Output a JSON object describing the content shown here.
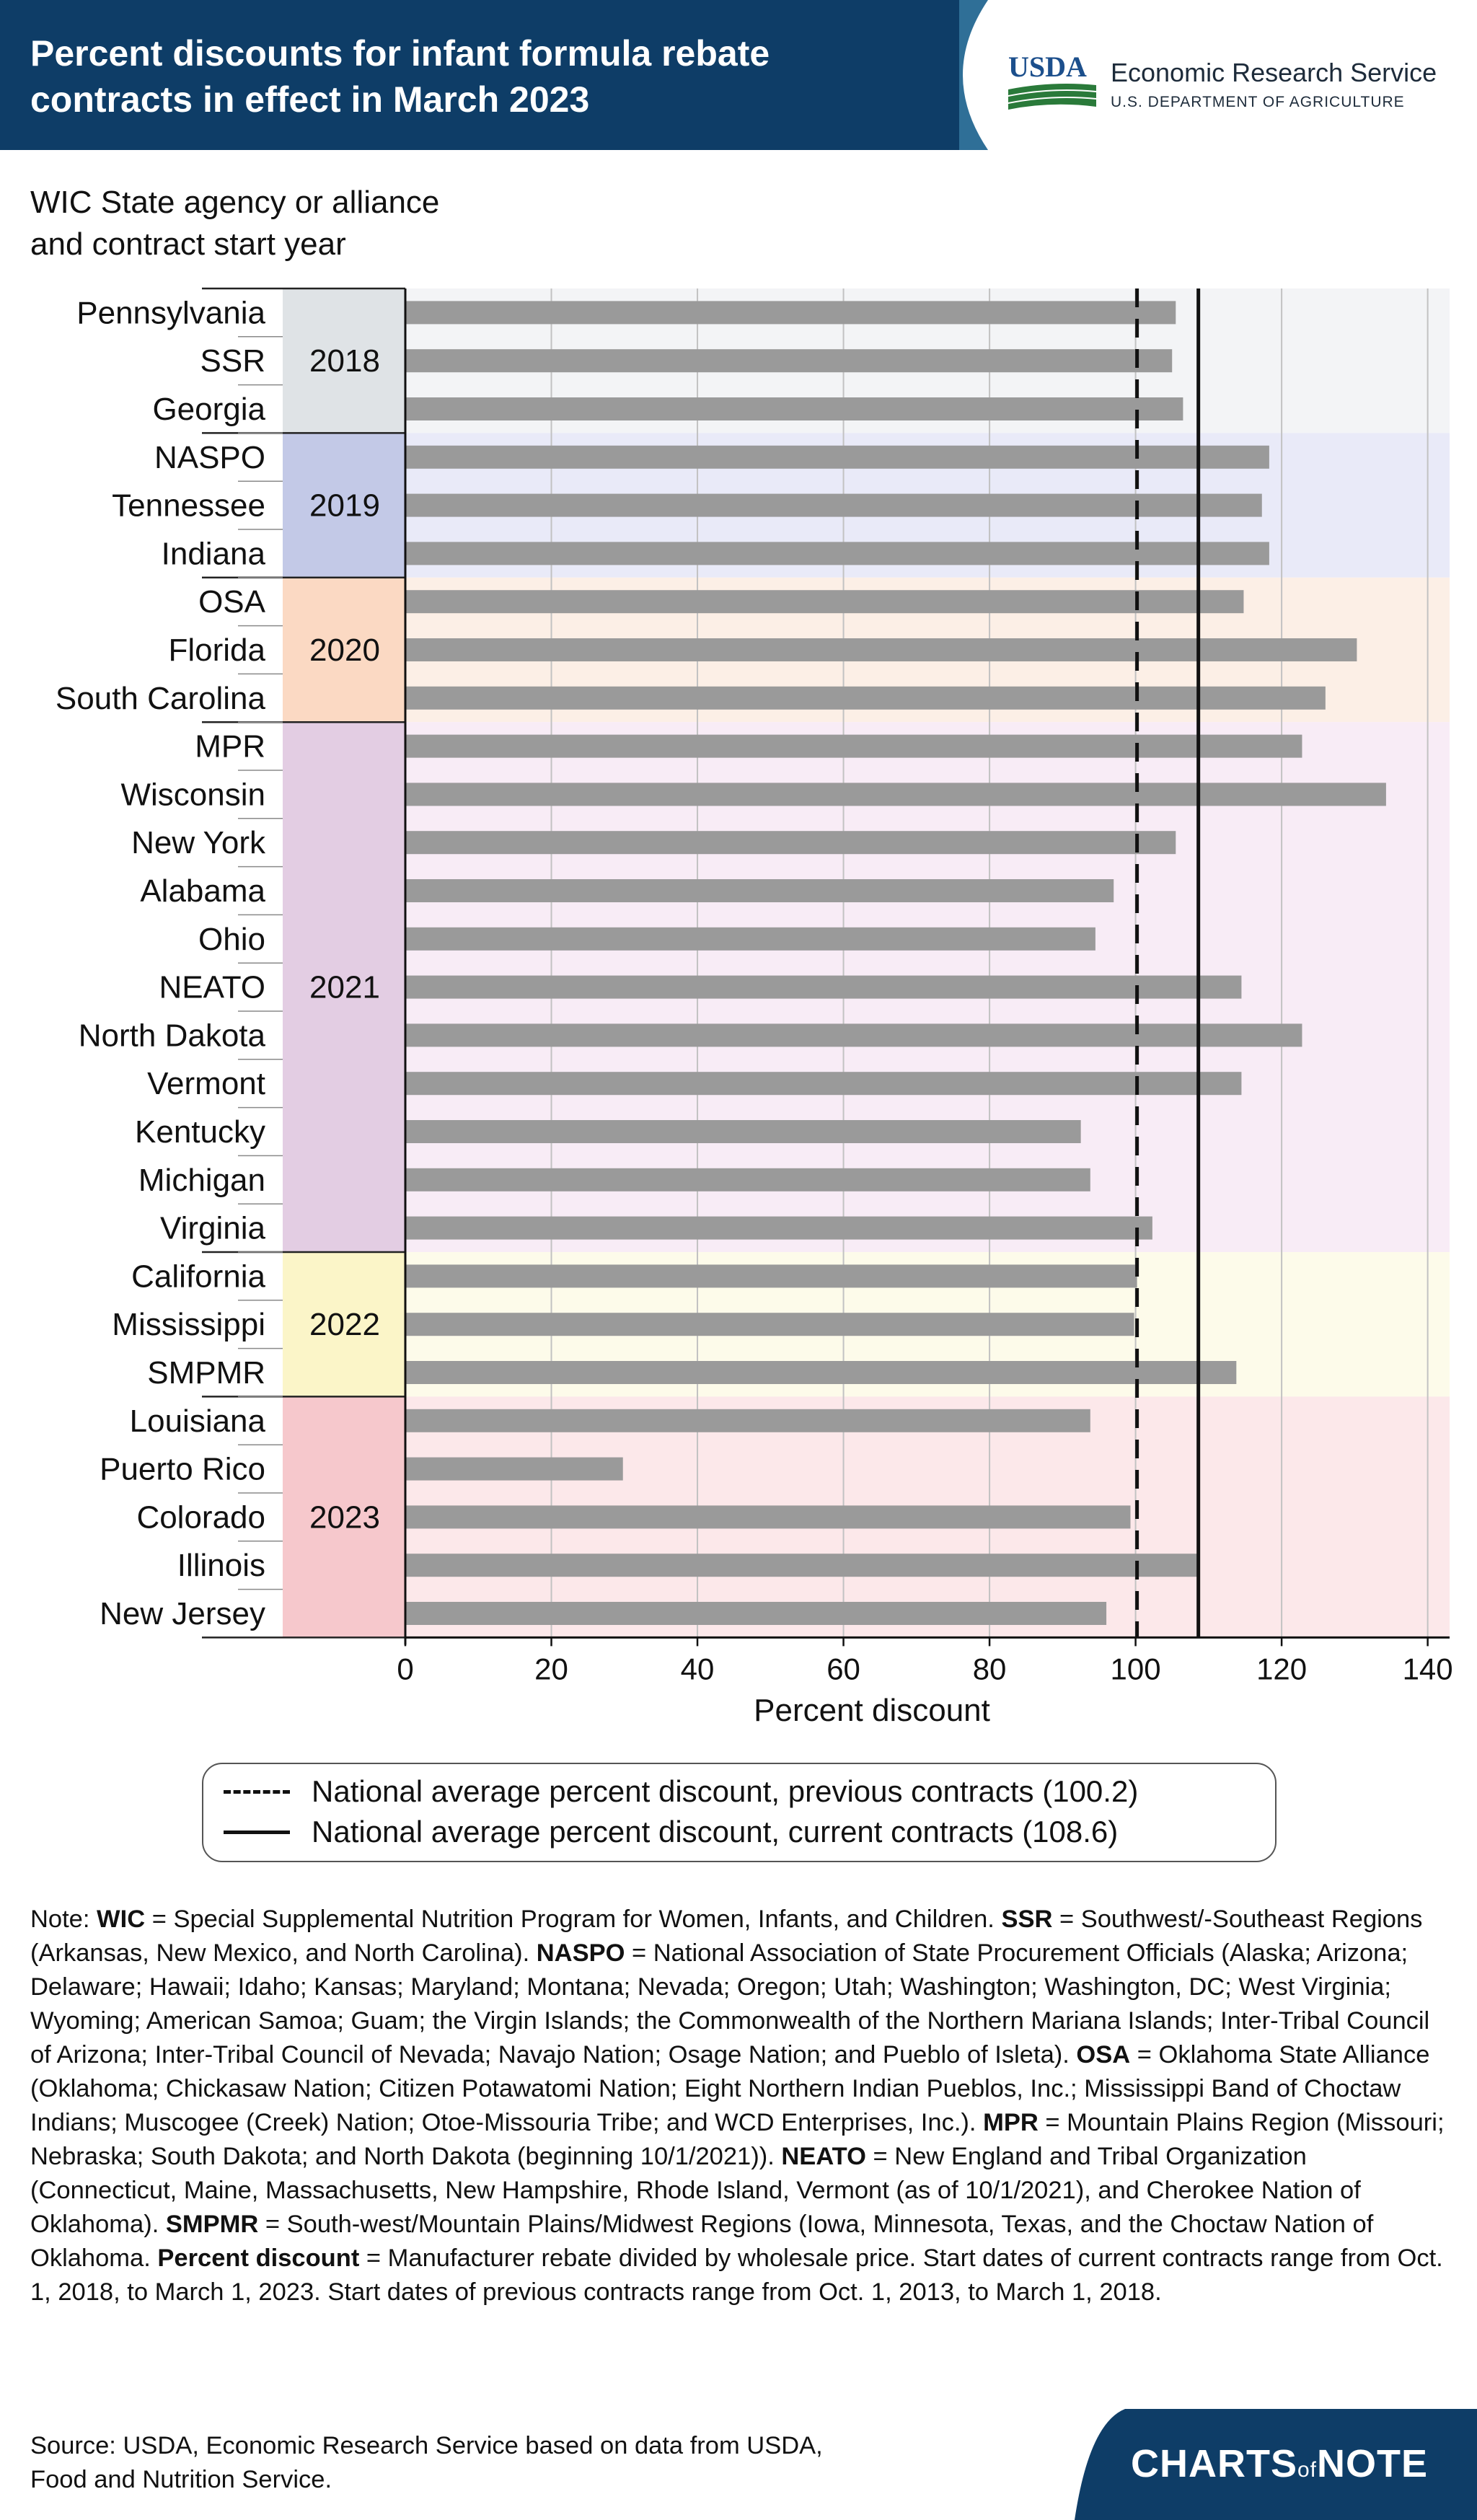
{
  "header": {
    "title_line1": "Percent discounts for infant formula rebate",
    "title_line2": "contracts in effect in March 2023",
    "logo_text": "USDA",
    "org_name": "Economic Research Service",
    "dept_name": "U.S. DEPARTMENT OF AGRICULTURE"
  },
  "yaxis_caption": {
    "line1": "WIC State agency or alliance",
    "line2": "and contract start year"
  },
  "colors": {
    "header_dark": "#0e3d67",
    "header_accent": "#2f6f97",
    "bar": "#9a9a9a",
    "usda_blue": "#1c4f8c",
    "usda_green": "#2a7a3a",
    "group_2018_band": "#dfe3e6",
    "group_2018_bg": "#f3f4f6",
    "group_2019_band": "#c3c9e7",
    "group_2019_bg": "#e9eaf8",
    "group_2020_band": "#fbd9c3",
    "group_2020_bg": "#fcefe6",
    "group_2021_band": "#e3cde3",
    "group_2021_bg": "#f8ecf6",
    "group_2022_band": "#fbf5c8",
    "group_2022_bg": "#fdfbea",
    "group_2023_band": "#f6c8cc",
    "group_2023_bg": "#fce8ea"
  },
  "chart_data": {
    "type": "bar",
    "orientation": "horizontal",
    "title": "Percent discounts for infant formula rebate contracts in effect in March 2023",
    "xlabel": "Percent discount",
    "ylabel": "WIC State agency or alliance and contract start year",
    "xlim": [
      0,
      143
    ],
    "xticks": [
      0,
      20,
      40,
      60,
      80,
      100,
      120,
      140
    ],
    "grid": true,
    "groups": [
      {
        "year": "2018",
        "start": 0,
        "end": 2
      },
      {
        "year": "2019",
        "start": 3,
        "end": 5
      },
      {
        "year": "2020",
        "start": 6,
        "end": 8
      },
      {
        "year": "2021",
        "start": 9,
        "end": 19
      },
      {
        "year": "2022",
        "start": 20,
        "end": 22
      },
      {
        "year": "2023",
        "start": 23,
        "end": 27
      }
    ],
    "categories": [
      "Pennsylvania",
      "SSR",
      "Georgia",
      "NASPO",
      "Tennessee",
      "Indiana",
      "OSA",
      "Florida",
      "South Carolina",
      "MPR",
      "Wisconsin",
      "New York",
      "Alabama",
      "Ohio",
      "NEATO",
      "North Dakota",
      "Vermont",
      "Kentucky",
      "Michigan",
      "Virginia",
      "California",
      "Mississippi",
      "SMPMR",
      "Louisiana",
      "Puerto Rico",
      "Colorado",
      "Illinois",
      "New Jersey"
    ],
    "values": [
      105.5,
      105,
      106.5,
      118.3,
      117.3,
      118.3,
      114.8,
      130.3,
      126,
      122.8,
      134.3,
      105.5,
      97,
      94.5,
      114.5,
      122.8,
      114.5,
      92.5,
      93.8,
      102.3,
      100.2,
      99.8,
      113.8,
      93.8,
      29.8,
      99.3,
      108.5,
      96
    ],
    "reference_lines": [
      {
        "label": "National average percent discount, previous contracts (100.2)",
        "value": 100.2,
        "style": "dashed"
      },
      {
        "label": "National average percent discount, current contracts (108.6)",
        "value": 108.6,
        "style": "solid"
      }
    ]
  },
  "note": {
    "lead": "Note: ",
    "wic_term": "WIC",
    "wic_def": " = Special Supplemental Nutrition Program for Women, Infants, and Children. ",
    "ssr_term": "SSR",
    "ssr_def": " = Southwest/-Southeast Regions (Arkansas, New Mexico, and North Carolina). ",
    "naspo_term": "NASPO",
    "naspo_def": " = National Association of State Procurement Officials (Alaska; Arizona; Delaware; Hawaii; Idaho; Kansas; Maryland; Montana; Nevada; Oregon; Utah; Washington; Washington, DC; West Virginia; Wyoming; American Samoa; Guam; the Virgin Islands; the Commonwealth of the Northern Mariana Islands; Inter-Tribal Council of Arizona; Inter-Tribal Council of Nevada; Navajo Nation; Osage Nation; and Pueblo of Isleta). ",
    "osa_term": "OSA",
    "osa_def": " = Oklahoma State Alliance (Oklahoma; Chickasaw Nation; Citizen Potawatomi Nation; Eight Northern Indian Pueblos, Inc.; Mississippi Band of Choctaw Indians; Muscogee (Creek) Nation; Otoe-Missouria Tribe; and WCD Enterprises, Inc.). ",
    "mpr_term": "MPR",
    "mpr_def": " = Mountain Plains Region (Missouri; Nebraska; South Dakota; and North Dakota (beginning 10/1/2021)). ",
    "neato_term": "NEATO",
    "neato_def": " = New England and Tribal Organization (Connecticut, Maine, Massachusetts, New Hampshire, Rhode Island, Vermont (as of 10/1/2021), and Cherokee Nation of Oklahoma). ",
    "smpmr_term": "SMPMR",
    "smpmr_def": " = South-west/Mountain Plains/Midwest Regions (Iowa, Minnesota, Texas, and the Choctaw Nation of Oklahoma. ",
    "pd_term": "Percent discount",
    "pd_def": " = Manufacturer rebate divided by wholesale price. Start dates of current contracts range from Oct. 1, 2018, to March 1, 2023. Start dates of previous contracts range from Oct. 1, 2013, to March 1, 2018."
  },
  "source": {
    "line1": "Source: USDA, Economic Research Service based on data from USDA,",
    "line2": "Food and Nutrition Service."
  },
  "branding": {
    "prefix": "CHARTS",
    "of": "of",
    "suffix": "NOTE"
  }
}
